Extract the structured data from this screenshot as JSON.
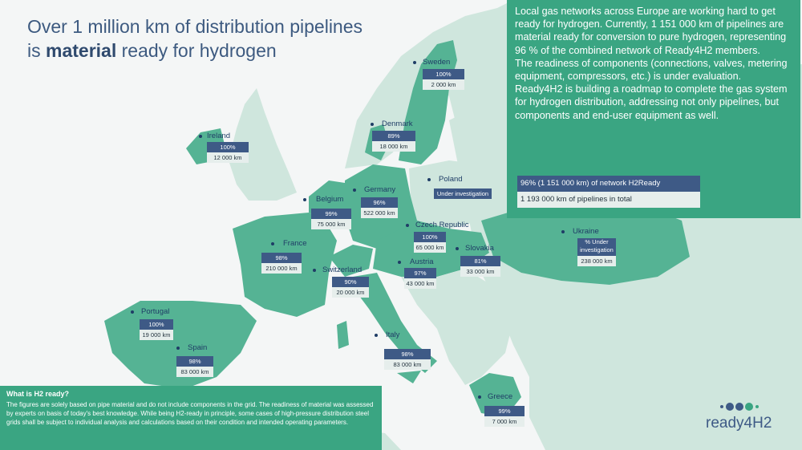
{
  "title": {
    "line1": "Over 1 million km of distribution pipelines",
    "line2_pre": "is ",
    "line2_bold": "material",
    "line2_post": " ready for hydrogen"
  },
  "info": {
    "p1": "Local gas networks across Europe are working hard to get ready for hydrogen. Currently, 1 151 000 km of pipelines are material ready for conversion to pure hydrogen, representing 96 % of the combined network of Ready4H2 members.",
    "p2": "The readiness of components  (connections, valves, metering equipment, compressors, etc.) is under evaluation.",
    "p3": "Ready4H2 is building a roadmap to complete the gas system for hydrogen distribution, addressing not only pipelines, but components and end-user equipment as well.",
    "legend_ready": "96% (1 151 000 km) of network H2Ready",
    "legend_total": "1 193 000 km of pipelines in total"
  },
  "countries": [
    {
      "name": "Sweden",
      "pct": "100%",
      "km": "2 000 km"
    },
    {
      "name": "Ireland",
      "pct": "100%",
      "km": "12 000 km"
    },
    {
      "name": "Denmark",
      "pct": "89%",
      "km": "18 000 km"
    },
    {
      "name": "Poland",
      "pct": "Under investigation",
      "km": ""
    },
    {
      "name": "Belgium",
      "pct": "99%",
      "km": "75 000 km"
    },
    {
      "name": "Germany",
      "pct": "96%",
      "km": "522 000 km"
    },
    {
      "name": "France",
      "pct": "98%",
      "km": "210 000 km"
    },
    {
      "name": "Czech Republic",
      "pct": "100%",
      "km": "65 000 km"
    },
    {
      "name": "Slovakia",
      "pct": "81%",
      "km": "33 000 km"
    },
    {
      "name": "Ukraine",
      "pct": "% Under investigation",
      "km": "238 000 km"
    },
    {
      "name": "Switzerland",
      "pct": "90%",
      "km": "20 000 km"
    },
    {
      "name": "Austria",
      "pct": "97%",
      "km": "43 000 km"
    },
    {
      "name": "Portugal",
      "pct": "100%",
      "km": "19 000 km"
    },
    {
      "name": "Spain",
      "pct": "98%",
      "km": "83 000 km"
    },
    {
      "name": "Italy",
      "pct": "98%",
      "km": "83 000 km"
    },
    {
      "name": "Greece",
      "pct": "99%",
      "km": "7 000 km"
    }
  ],
  "what": {
    "title": "What is H2 ready?",
    "body": "The figures are solely based on pipe material and do not include components in the grid. The readiness of material was assessed by experts on basis of today's best knowledge.  While being H2-ready in principle, some cases of high-pressure distribution steel grids shall be subject to individual analysis and calculations based on their condition and intended operating parameters."
  },
  "logo": {
    "text": "ready4H2"
  },
  "colors": {
    "land_member": "#55b394",
    "land_other": "#cfe6dd",
    "sea": "#f4f6f6",
    "panel_green": "#3aa582",
    "label_blue": "#3e5a86",
    "title_blue": "#3d5a80"
  }
}
